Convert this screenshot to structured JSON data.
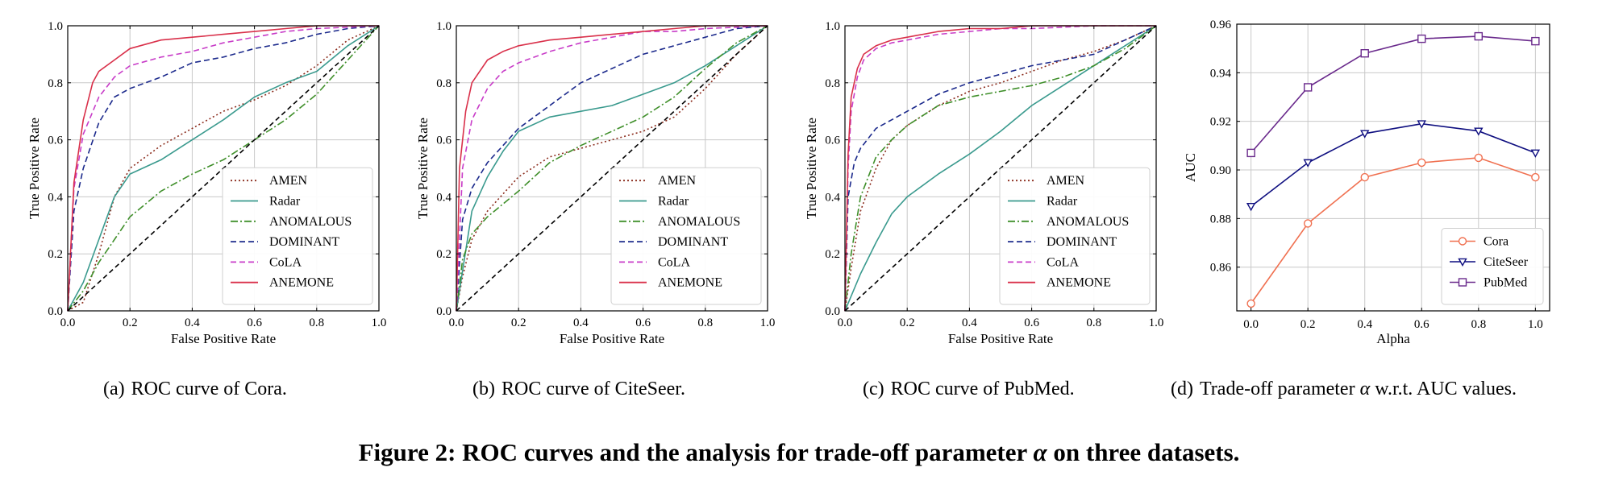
{
  "figure_caption": {
    "before_symbol": "Figure 2: ROC curves and the analysis for trade-off parameter ",
    "symbol": "α",
    "after_symbol": " on three datasets."
  },
  "subcaptions": [
    {
      "label": "(a)",
      "text": "ROC curve of Cora."
    },
    {
      "label": "(b)",
      "text": "ROC curve of CiteSeer."
    },
    {
      "label": "(c)",
      "text": "ROC curve of PubMed."
    },
    {
      "label": "(d)",
      "text_before": "Trade-off parameter ",
      "symbol": "α",
      "text_after": " w.r.t. AUC values."
    }
  ],
  "colors": {
    "AMEN": "#8c2d1e",
    "Radar": "#3a9a8e",
    "ANOMALOUS": "#3f8f2a",
    "DOMINANT": "#1c2a8c",
    "CoLA": "#c83cc8",
    "ANEMONE": "#d9304a",
    "diagonal": "#000000",
    "Cora": "#f07050",
    "CiteSeer": "#0f0f80",
    "PubMed": "#6a2a8c",
    "grid": "#c8c8c8"
  },
  "chart_data": [
    {
      "type": "line",
      "dataset": "Cora",
      "xlabel": "False Positive Rate",
      "ylabel": "True Positive Rate",
      "xlim": [
        0,
        1
      ],
      "ylim": [
        0,
        1
      ],
      "ticks": [
        "0.0",
        "0.2",
        "0.4",
        "0.6",
        "0.8",
        "1.0"
      ],
      "legend": "lower-right",
      "series": [
        {
          "name": "AMEN",
          "style": "dotted",
          "x": [
            0,
            0.05,
            0.1,
            0.15,
            0.2,
            0.3,
            0.4,
            0.5,
            0.6,
            0.7,
            0.8,
            0.9,
            1
          ],
          "y": [
            0,
            0.03,
            0.2,
            0.4,
            0.5,
            0.58,
            0.64,
            0.7,
            0.74,
            0.79,
            0.86,
            0.95,
            1
          ]
        },
        {
          "name": "Radar",
          "style": "solid",
          "x": [
            0,
            0.05,
            0.1,
            0.15,
            0.2,
            0.3,
            0.4,
            0.5,
            0.6,
            0.7,
            0.8,
            0.9,
            1
          ],
          "y": [
            0,
            0.1,
            0.25,
            0.4,
            0.48,
            0.53,
            0.6,
            0.67,
            0.75,
            0.8,
            0.84,
            0.93,
            1
          ]
        },
        {
          "name": "ANOMALOUS",
          "style": "dashdot",
          "x": [
            0,
            0.05,
            0.1,
            0.2,
            0.3,
            0.4,
            0.5,
            0.6,
            0.7,
            0.8,
            0.9,
            1
          ],
          "y": [
            0,
            0.07,
            0.17,
            0.33,
            0.42,
            0.48,
            0.53,
            0.6,
            0.67,
            0.76,
            0.88,
            1
          ]
        },
        {
          "name": "DOMINANT",
          "style": "dashed",
          "x": [
            0,
            0.02,
            0.05,
            0.1,
            0.15,
            0.2,
            0.3,
            0.4,
            0.5,
            0.6,
            0.7,
            0.8,
            0.9,
            1
          ],
          "y": [
            0,
            0.35,
            0.5,
            0.66,
            0.75,
            0.78,
            0.82,
            0.87,
            0.89,
            0.92,
            0.94,
            0.97,
            0.99,
            1
          ]
        },
        {
          "name": "CoLA",
          "style": "dashed",
          "x": [
            0,
            0.02,
            0.05,
            0.1,
            0.15,
            0.2,
            0.3,
            0.4,
            0.5,
            0.6,
            0.7,
            0.8,
            1
          ],
          "y": [
            0,
            0.43,
            0.62,
            0.75,
            0.82,
            0.86,
            0.89,
            0.91,
            0.94,
            0.96,
            0.98,
            0.99,
            1
          ]
        },
        {
          "name": "ANEMONE",
          "style": "solid",
          "x": [
            0,
            0.02,
            0.05,
            0.08,
            0.1,
            0.15,
            0.2,
            0.3,
            0.4,
            0.5,
            0.6,
            0.7,
            0.8,
            1
          ],
          "y": [
            0,
            0.45,
            0.67,
            0.8,
            0.84,
            0.88,
            0.92,
            0.95,
            0.96,
            0.97,
            0.98,
            0.99,
            1,
            1
          ]
        },
        {
          "name": "",
          "style": "diagonal",
          "x": [
            0,
            1
          ],
          "y": [
            0,
            1
          ]
        }
      ]
    },
    {
      "type": "line",
      "dataset": "CiteSeer",
      "xlabel": "False Positive Rate",
      "ylabel": "True Positive Rate",
      "xlim": [
        0,
        1
      ],
      "ylim": [
        0,
        1
      ],
      "ticks": [
        "0.0",
        "0.2",
        "0.4",
        "0.6",
        "0.8",
        "1.0"
      ],
      "legend": "lower-right",
      "series": [
        {
          "name": "AMEN",
          "style": "dotted",
          "x": [
            0,
            0.02,
            0.05,
            0.1,
            0.2,
            0.3,
            0.4,
            0.5,
            0.6,
            0.7,
            0.8,
            0.9,
            1
          ],
          "y": [
            0,
            0.12,
            0.25,
            0.35,
            0.47,
            0.54,
            0.57,
            0.6,
            0.63,
            0.68,
            0.78,
            0.9,
            1
          ]
        },
        {
          "name": "Radar",
          "style": "solid",
          "x": [
            0,
            0.02,
            0.05,
            0.1,
            0.15,
            0.2,
            0.3,
            0.4,
            0.5,
            0.6,
            0.7,
            0.8,
            0.9,
            1
          ],
          "y": [
            0,
            0.14,
            0.35,
            0.47,
            0.56,
            0.63,
            0.68,
            0.7,
            0.72,
            0.76,
            0.8,
            0.86,
            0.93,
            1
          ]
        },
        {
          "name": "ANOMALOUS",
          "style": "dashdot",
          "x": [
            0,
            0.02,
            0.05,
            0.1,
            0.2,
            0.3,
            0.4,
            0.5,
            0.6,
            0.7,
            0.8,
            0.9,
            1
          ],
          "y": [
            0,
            0.18,
            0.27,
            0.33,
            0.42,
            0.52,
            0.58,
            0.63,
            0.68,
            0.75,
            0.85,
            0.94,
            1
          ]
        },
        {
          "name": "DOMINANT",
          "style": "dashed",
          "x": [
            0,
            0.02,
            0.05,
            0.1,
            0.15,
            0.2,
            0.3,
            0.4,
            0.5,
            0.6,
            0.7,
            0.8,
            0.9,
            1
          ],
          "y": [
            0,
            0.32,
            0.43,
            0.52,
            0.58,
            0.64,
            0.72,
            0.8,
            0.85,
            0.9,
            0.93,
            0.96,
            0.99,
            1
          ]
        },
        {
          "name": "CoLA",
          "style": "dashed",
          "x": [
            0,
            0.02,
            0.05,
            0.1,
            0.15,
            0.2,
            0.3,
            0.4,
            0.5,
            0.6,
            0.7,
            0.8,
            1
          ],
          "y": [
            0,
            0.5,
            0.67,
            0.78,
            0.84,
            0.87,
            0.91,
            0.94,
            0.96,
            0.98,
            0.98,
            0.99,
            1
          ]
        },
        {
          "name": "ANEMONE",
          "style": "solid",
          "x": [
            0,
            0.01,
            0.03,
            0.05,
            0.1,
            0.15,
            0.2,
            0.3,
            0.4,
            0.5,
            0.6,
            0.7,
            0.8,
            1
          ],
          "y": [
            0,
            0.5,
            0.7,
            0.8,
            0.88,
            0.91,
            0.93,
            0.95,
            0.96,
            0.97,
            0.98,
            0.99,
            1,
            1
          ]
        },
        {
          "name": "",
          "style": "diagonal",
          "x": [
            0,
            1
          ],
          "y": [
            0,
            1
          ]
        }
      ]
    },
    {
      "type": "line",
      "dataset": "PubMed",
      "xlabel": "False Positive Rate",
      "ylabel": "True Positive Rate",
      "xlim": [
        0,
        1
      ],
      "ylim": [
        0,
        1
      ],
      "ticks": [
        "0.0",
        "0.2",
        "0.4",
        "0.6",
        "0.8",
        "1.0"
      ],
      "legend": "lower-right",
      "series": [
        {
          "name": "AMEN",
          "style": "dotted",
          "x": [
            0,
            0.02,
            0.05,
            0.1,
            0.15,
            0.2,
            0.3,
            0.4,
            0.5,
            0.6,
            0.7,
            0.8,
            0.9,
            1
          ],
          "y": [
            0,
            0.15,
            0.35,
            0.5,
            0.6,
            0.65,
            0.72,
            0.77,
            0.8,
            0.84,
            0.88,
            0.91,
            0.95,
            1
          ]
        },
        {
          "name": "Radar",
          "style": "solid",
          "x": [
            0,
            0.05,
            0.1,
            0.15,
            0.2,
            0.3,
            0.4,
            0.5,
            0.6,
            0.7,
            0.8,
            0.9,
            1
          ],
          "y": [
            0,
            0.13,
            0.24,
            0.34,
            0.4,
            0.48,
            0.55,
            0.63,
            0.72,
            0.79,
            0.86,
            0.93,
            1
          ]
        },
        {
          "name": "ANOMALOUS",
          "style": "dashdot",
          "x": [
            0,
            0.02,
            0.05,
            0.1,
            0.15,
            0.2,
            0.3,
            0.4,
            0.5,
            0.6,
            0.7,
            0.8,
            0.9,
            1
          ],
          "y": [
            0,
            0.2,
            0.4,
            0.54,
            0.6,
            0.65,
            0.72,
            0.75,
            0.77,
            0.79,
            0.82,
            0.86,
            0.92,
            1
          ]
        },
        {
          "name": "DOMINANT",
          "style": "dashed",
          "x": [
            0,
            0.01,
            0.03,
            0.05,
            0.1,
            0.15,
            0.2,
            0.3,
            0.4,
            0.5,
            0.6,
            0.7,
            0.8,
            0.9,
            1
          ],
          "y": [
            0,
            0.4,
            0.52,
            0.57,
            0.64,
            0.67,
            0.7,
            0.76,
            0.8,
            0.83,
            0.86,
            0.88,
            0.9,
            0.95,
            1
          ]
        },
        {
          "name": "CoLA",
          "style": "dashed",
          "x": [
            0,
            0.01,
            0.02,
            0.04,
            0.06,
            0.1,
            0.15,
            0.2,
            0.3,
            0.4,
            0.5,
            0.6,
            0.8,
            1
          ],
          "y": [
            0,
            0.5,
            0.7,
            0.82,
            0.88,
            0.92,
            0.94,
            0.95,
            0.97,
            0.98,
            0.99,
            0.99,
            1,
            1
          ]
        },
        {
          "name": "ANEMONE",
          "style": "solid",
          "x": [
            0,
            0.01,
            0.02,
            0.04,
            0.06,
            0.1,
            0.15,
            0.2,
            0.3,
            0.4,
            0.5,
            0.6,
            0.8,
            1
          ],
          "y": [
            0,
            0.55,
            0.75,
            0.85,
            0.9,
            0.93,
            0.95,
            0.96,
            0.98,
            0.99,
            0.99,
            1,
            1,
            1
          ]
        },
        {
          "name": "",
          "style": "diagonal",
          "x": [
            0,
            1
          ],
          "y": [
            0,
            1
          ]
        }
      ]
    },
    {
      "type": "line",
      "dataset": "Trade-off",
      "xlabel": "Alpha",
      "ylabel": "AUC",
      "xlim": [
        -0.05,
        1.05
      ],
      "ylim": [
        0.842,
        0.96
      ],
      "xticks": [
        "0.0",
        "0.2",
        "0.4",
        "0.6",
        "0.8",
        "1.0"
      ],
      "yticks": [
        "0.86",
        "0.88",
        "0.90",
        "0.92",
        "0.94",
        "0.96"
      ],
      "legend": "lower-right",
      "series": [
        {
          "name": "Cora",
          "marker": "circle",
          "x": [
            0,
            0.2,
            0.4,
            0.6,
            0.8,
            1.0
          ],
          "y": [
            0.845,
            0.878,
            0.897,
            0.903,
            0.905,
            0.897
          ]
        },
        {
          "name": "CiteSeer",
          "marker": "triangle-down",
          "x": [
            0,
            0.2,
            0.4,
            0.6,
            0.8,
            1.0
          ],
          "y": [
            0.885,
            0.903,
            0.915,
            0.919,
            0.916,
            0.907
          ]
        },
        {
          "name": "PubMed",
          "marker": "square",
          "x": [
            0,
            0.2,
            0.4,
            0.6,
            0.8,
            1.0
          ],
          "y": [
            0.907,
            0.934,
            0.948,
            0.954,
            0.955,
            0.953
          ]
        }
      ]
    }
  ]
}
